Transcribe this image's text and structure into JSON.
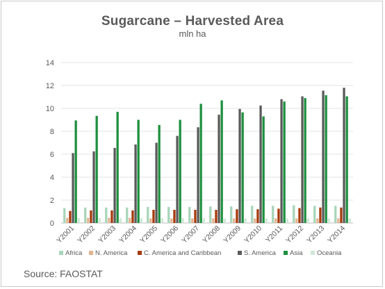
{
  "chart_data": {
    "type": "bar",
    "title": "Sugarcane – Harvested Area",
    "subtitle": "mln ha",
    "categories": [
      "Y2001",
      "Y2002",
      "Y2003",
      "Y2004",
      "Y2005",
      "Y2006",
      "Y2007",
      "Y2008",
      "Y2009",
      "Y2010",
      "Y2011",
      "Y2012",
      "Y2013",
      "Y2014"
    ],
    "ylim": [
      0,
      14
    ],
    "yticks": [
      0,
      2,
      4,
      6,
      8,
      10,
      12,
      14
    ],
    "grid": true,
    "legend_position": "bottom",
    "series": [
      {
        "name": "Africa",
        "color": "#a8d5ba",
        "values": [
          1.3,
          1.35,
          1.35,
          1.35,
          1.4,
          1.4,
          1.4,
          1.45,
          1.45,
          1.5,
          1.5,
          1.55,
          1.5,
          1.5
        ]
      },
      {
        "name": "N. America",
        "color": "#e3b38f",
        "values": [
          0.45,
          0.45,
          0.45,
          0.45,
          0.4,
          0.4,
          0.4,
          0.4,
          0.4,
          0.4,
          0.4,
          0.4,
          0.4,
          0.4
        ]
      },
      {
        "name": "C. America and Caribbean",
        "color": "#a63a0c",
        "values": [
          1.05,
          1.1,
          1.1,
          1.1,
          1.15,
          1.15,
          1.15,
          1.15,
          1.2,
          1.2,
          1.25,
          1.3,
          1.35,
          1.35
        ]
      },
      {
        "name": "S. America",
        "color": "#5a5a5a",
        "values": [
          6.1,
          6.25,
          6.55,
          6.85,
          7.0,
          7.6,
          8.35,
          9.45,
          9.95,
          10.25,
          10.8,
          11.05,
          11.55,
          11.8
        ]
      },
      {
        "name": "Asia",
        "color": "#1e8f3e",
        "values": [
          8.95,
          9.35,
          9.7,
          9.0,
          8.55,
          9.0,
          10.4,
          10.7,
          9.65,
          9.3,
          10.6,
          10.9,
          11.15,
          11.05
        ]
      },
      {
        "name": "Oceania",
        "color": "#cfe8d6",
        "values": [
          0.42,
          0.42,
          0.42,
          0.42,
          0.42,
          0.42,
          0.42,
          0.4,
          0.4,
          0.4,
          0.4,
          0.4,
          0.4,
          0.4
        ]
      }
    ]
  },
  "source": "Source: FAOSTAT"
}
